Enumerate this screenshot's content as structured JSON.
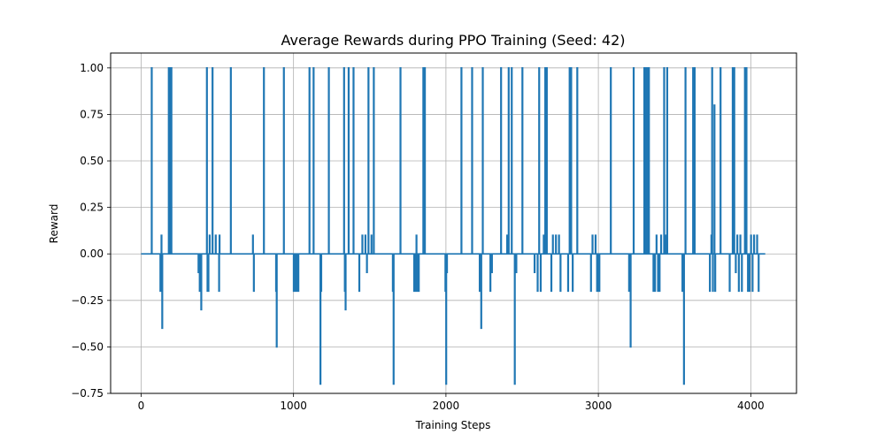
{
  "chart_data": {
    "type": "line",
    "title": "Average Rewards during PPO Training (Seed: 42)",
    "xlabel": "Training Steps",
    "ylabel": "Reward",
    "xlim": [
      -200,
      4300
    ],
    "ylim": [
      -0.75,
      1.08
    ],
    "grid": true,
    "color": "#1f77b4",
    "x_ticks": [
      0,
      1000,
      2000,
      3000,
      4000
    ],
    "x_tick_labels": [
      "0",
      "1000",
      "2000",
      "3000",
      "4000"
    ],
    "y_ticks": [
      -0.75,
      -0.5,
      -0.25,
      0.0,
      0.25,
      0.5,
      0.75,
      1.0
    ],
    "y_tick_labels": [
      "−0.75",
      "−0.50",
      "−0.25",
      "0.00",
      "0.25",
      "0.50",
      "0.75",
      "1.00"
    ],
    "x_start": 0,
    "x_end": 4095,
    "baseline": 0.0,
    "series": [
      {
        "spikes": [
          [
            68,
            1.0
          ],
          [
            125,
            -0.2
          ],
          [
            132,
            0.1
          ],
          [
            137,
            -0.4
          ],
          [
            180,
            1.0
          ],
          [
            186,
            1.0
          ],
          [
            192,
            1.0
          ],
          [
            197,
            1.0
          ],
          [
            375,
            -0.1
          ],
          [
            383,
            -0.2
          ],
          [
            393,
            -0.3
          ],
          [
            430,
            1.0
          ],
          [
            434,
            -0.2
          ],
          [
            440,
            -0.2
          ],
          [
            448,
            0.1
          ],
          [
            467,
            1.0
          ],
          [
            488,
            0.1
          ],
          [
            510,
            -0.2
          ],
          [
            513,
            0.1
          ],
          [
            587,
            1.0
          ],
          [
            732,
            0.1
          ],
          [
            738,
            -0.2
          ],
          [
            804,
            1.0
          ],
          [
            884,
            -0.2
          ],
          [
            888,
            -0.5
          ],
          [
            935,
            1.0
          ],
          [
            1000,
            -0.2
          ],
          [
            1010,
            -0.2
          ],
          [
            1020,
            -0.2
          ],
          [
            1030,
            -0.2
          ],
          [
            1103,
            1.0
          ],
          [
            1130,
            1.0
          ],
          [
            1175,
            -0.7
          ],
          [
            1180,
            -0.2
          ],
          [
            1230,
            1.0
          ],
          [
            1330,
            1.0
          ],
          [
            1335,
            -0.2
          ],
          [
            1340,
            -0.3
          ],
          [
            1360,
            1.0
          ],
          [
            1392,
            1.0
          ],
          [
            1430,
            -0.2
          ],
          [
            1450,
            0.1
          ],
          [
            1470,
            0.1
          ],
          [
            1480,
            -0.1
          ],
          [
            1490,
            1.0
          ],
          [
            1510,
            0.1
          ],
          [
            1525,
            1.0
          ],
          [
            1650,
            -0.2
          ],
          [
            1655,
            -0.7
          ],
          [
            1700,
            1.0
          ],
          [
            1790,
            -0.2
          ],
          [
            1800,
            -0.2
          ],
          [
            1805,
            0.1
          ],
          [
            1810,
            -0.2
          ],
          [
            1820,
            -0.2
          ],
          [
            1850,
            1.0
          ],
          [
            1860,
            1.0
          ],
          [
            1995,
            -0.2
          ],
          [
            2000,
            -0.7
          ],
          [
            2005,
            -0.1
          ],
          [
            2100,
            1.0
          ],
          [
            2170,
            1.0
          ],
          [
            2220,
            -0.2
          ],
          [
            2225,
            -0.2
          ],
          [
            2230,
            -0.4
          ],
          [
            2240,
            1.0
          ],
          [
            2290,
            -0.2
          ],
          [
            2300,
            -0.1
          ],
          [
            2360,
            1.0
          ],
          [
            2400,
            0.1
          ],
          [
            2410,
            1.0
          ],
          [
            2430,
            1.0
          ],
          [
            2450,
            -0.7
          ],
          [
            2460,
            -0.1
          ],
          [
            2500,
            1.0
          ],
          [
            2580,
            -0.1
          ],
          [
            2600,
            -0.2
          ],
          [
            2610,
            1.0
          ],
          [
            2620,
            -0.2
          ],
          [
            2640,
            0.1
          ],
          [
            2650,
            1.0
          ],
          [
            2660,
            1.0
          ],
          [
            2690,
            -0.2
          ],
          [
            2700,
            0.1
          ],
          [
            2720,
            0.1
          ],
          [
            2740,
            0.1
          ],
          [
            2750,
            -0.2
          ],
          [
            2800,
            -0.2
          ],
          [
            2810,
            1.0
          ],
          [
            2820,
            1.0
          ],
          [
            2830,
            -0.2
          ],
          [
            2860,
            1.0
          ],
          [
            2950,
            -0.2
          ],
          [
            2960,
            0.1
          ],
          [
            2980,
            0.1
          ],
          [
            2990,
            -0.2
          ],
          [
            3000,
            -0.2
          ],
          [
            3005,
            -0.2
          ],
          [
            3080,
            1.0
          ],
          [
            3200,
            -0.2
          ],
          [
            3210,
            -0.5
          ],
          [
            3230,
            1.0
          ],
          [
            3300,
            1.0
          ],
          [
            3310,
            1.0
          ],
          [
            3320,
            1.0
          ],
          [
            3330,
            1.0
          ],
          [
            3360,
            -0.2
          ],
          [
            3370,
            -0.2
          ],
          [
            3380,
            0.1
          ],
          [
            3390,
            -0.2
          ],
          [
            3400,
            -0.2
          ],
          [
            3410,
            0.1
          ],
          [
            3430,
            1.0
          ],
          [
            3440,
            0.1
          ],
          [
            3450,
            1.0
          ],
          [
            3550,
            -0.2
          ],
          [
            3560,
            -0.7
          ],
          [
            3570,
            1.0
          ],
          [
            3620,
            1.0
          ],
          [
            3630,
            1.0
          ],
          [
            3730,
            -0.2
          ],
          [
            3740,
            0.1
          ],
          [
            3745,
            1.0
          ],
          [
            3750,
            -0.2
          ],
          [
            3760,
            0.8
          ],
          [
            3765,
            -0.2
          ],
          [
            3800,
            1.0
          ],
          [
            3860,
            -0.2
          ],
          [
            3880,
            1.0
          ],
          [
            3890,
            1.0
          ],
          [
            3900,
            -0.1
          ],
          [
            3910,
            0.1
          ],
          [
            3920,
            -0.2
          ],
          [
            3930,
            0.1
          ],
          [
            3940,
            -0.2
          ],
          [
            3960,
            1.0
          ],
          [
            3970,
            1.0
          ],
          [
            3980,
            -0.2
          ],
          [
            3990,
            -0.2
          ],
          [
            4000,
            0.1
          ],
          [
            4010,
            -0.2
          ],
          [
            4020,
            0.1
          ],
          [
            4040,
            0.1
          ],
          [
            4050,
            -0.2
          ]
        ]
      }
    ]
  }
}
